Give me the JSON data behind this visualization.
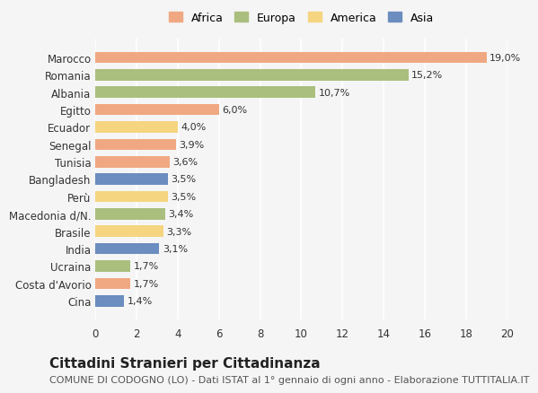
{
  "countries": [
    "Marocco",
    "Romania",
    "Albania",
    "Egitto",
    "Ecuador",
    "Senegal",
    "Tunisia",
    "Bangladesh",
    "Perù",
    "Macedonia d/N.",
    "Brasile",
    "India",
    "Ucraina",
    "Costa d'Avorio",
    "Cina"
  ],
  "values": [
    19.0,
    15.2,
    10.7,
    6.0,
    4.0,
    3.9,
    3.6,
    3.5,
    3.5,
    3.4,
    3.3,
    3.1,
    1.7,
    1.7,
    1.4
  ],
  "labels": [
    "19,0%",
    "15,2%",
    "10,7%",
    "6,0%",
    "4,0%",
    "3,9%",
    "3,6%",
    "3,5%",
    "3,5%",
    "3,4%",
    "3,3%",
    "3,1%",
    "1,7%",
    "1,7%",
    "1,4%"
  ],
  "continents": [
    "Africa",
    "Europa",
    "Europa",
    "Africa",
    "America",
    "Africa",
    "Africa",
    "Asia",
    "America",
    "Europa",
    "America",
    "Asia",
    "Europa",
    "Africa",
    "Asia"
  ],
  "continent_colors": {
    "Africa": "#F0A882",
    "Europa": "#AABF7E",
    "America": "#F5D580",
    "Asia": "#6B8DBF"
  },
  "legend_order": [
    "Africa",
    "Europa",
    "America",
    "Asia"
  ],
  "title": "Cittadini Stranieri per Cittadinanza",
  "subtitle": "COMUNE DI CODOGNO (LO) - Dati ISTAT al 1° gennaio di ogni anno - Elaborazione TUTTITALIA.IT",
  "xlim": [
    0,
    20
  ],
  "xticks": [
    0,
    2,
    4,
    6,
    8,
    10,
    12,
    14,
    16,
    18,
    20
  ],
  "background_color": "#f5f5f5",
  "bar_height": 0.65,
  "grid_color": "#ffffff",
  "title_fontsize": 11,
  "subtitle_fontsize": 8,
  "label_fontsize": 8,
  "tick_fontsize": 8.5,
  "legend_fontsize": 9
}
